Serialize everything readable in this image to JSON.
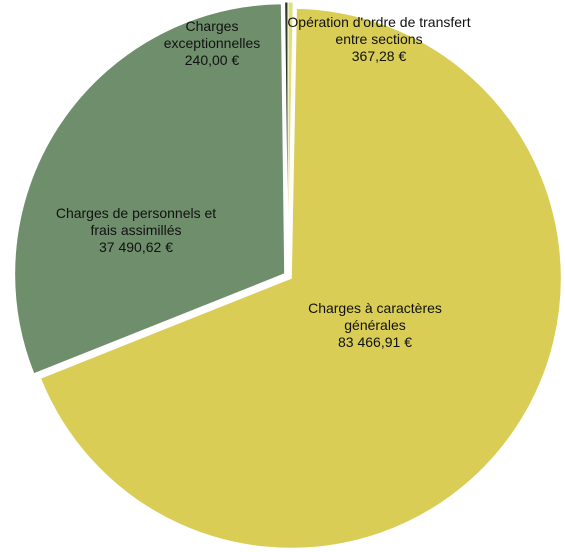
{
  "chart_data": {
    "type": "pie",
    "categories": [
      "Opération d'ordre de transfert entre sections",
      "Charges à caractères générales",
      "Charges de personnels et frais assimillés",
      "Charges exceptionnelles"
    ],
    "values": [
      367.28,
      83466.91,
      37490.62,
      240.0
    ],
    "value_labels": [
      "367,28 €",
      "83 466,91 €",
      "37 490,62 €",
      "240,00 €"
    ],
    "colors": [
      "#dfe07a",
      "#d9cd55",
      "#6f8f6c",
      "#2f3a2a"
    ]
  }
}
